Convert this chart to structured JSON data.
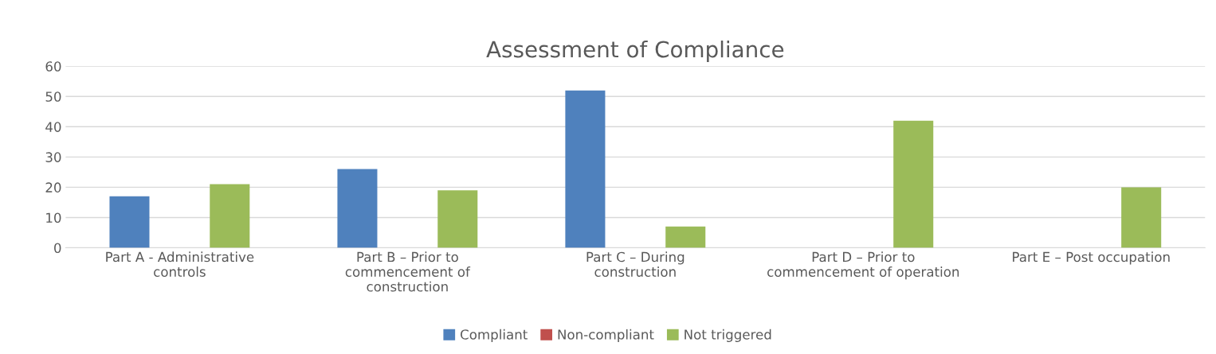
{
  "chart_data": {
    "type": "bar",
    "title": "Assessment of Compliance",
    "categories": [
      "Part A - Administrative controls",
      "Part B – Prior to commencement of construction",
      "Part C – During construction",
      "Part D – Prior to commencement of operation",
      "Part E – Post occupation"
    ],
    "series": [
      {
        "name": "Compliant",
        "color": "#4f81bd",
        "values": [
          17,
          26,
          52,
          0,
          0
        ]
      },
      {
        "name": "Non-compliant",
        "color": "#c0504d",
        "values": [
          0,
          0,
          0,
          0,
          0
        ]
      },
      {
        "name": "Not triggered",
        "color": "#9bbb59",
        "values": [
          21,
          19,
          7,
          42,
          20
        ]
      }
    ],
    "ylim": [
      0,
      60
    ],
    "yticks": [
      0,
      10,
      20,
      30,
      40,
      50,
      60
    ],
    "grid": "y",
    "legend": "bottom"
  }
}
